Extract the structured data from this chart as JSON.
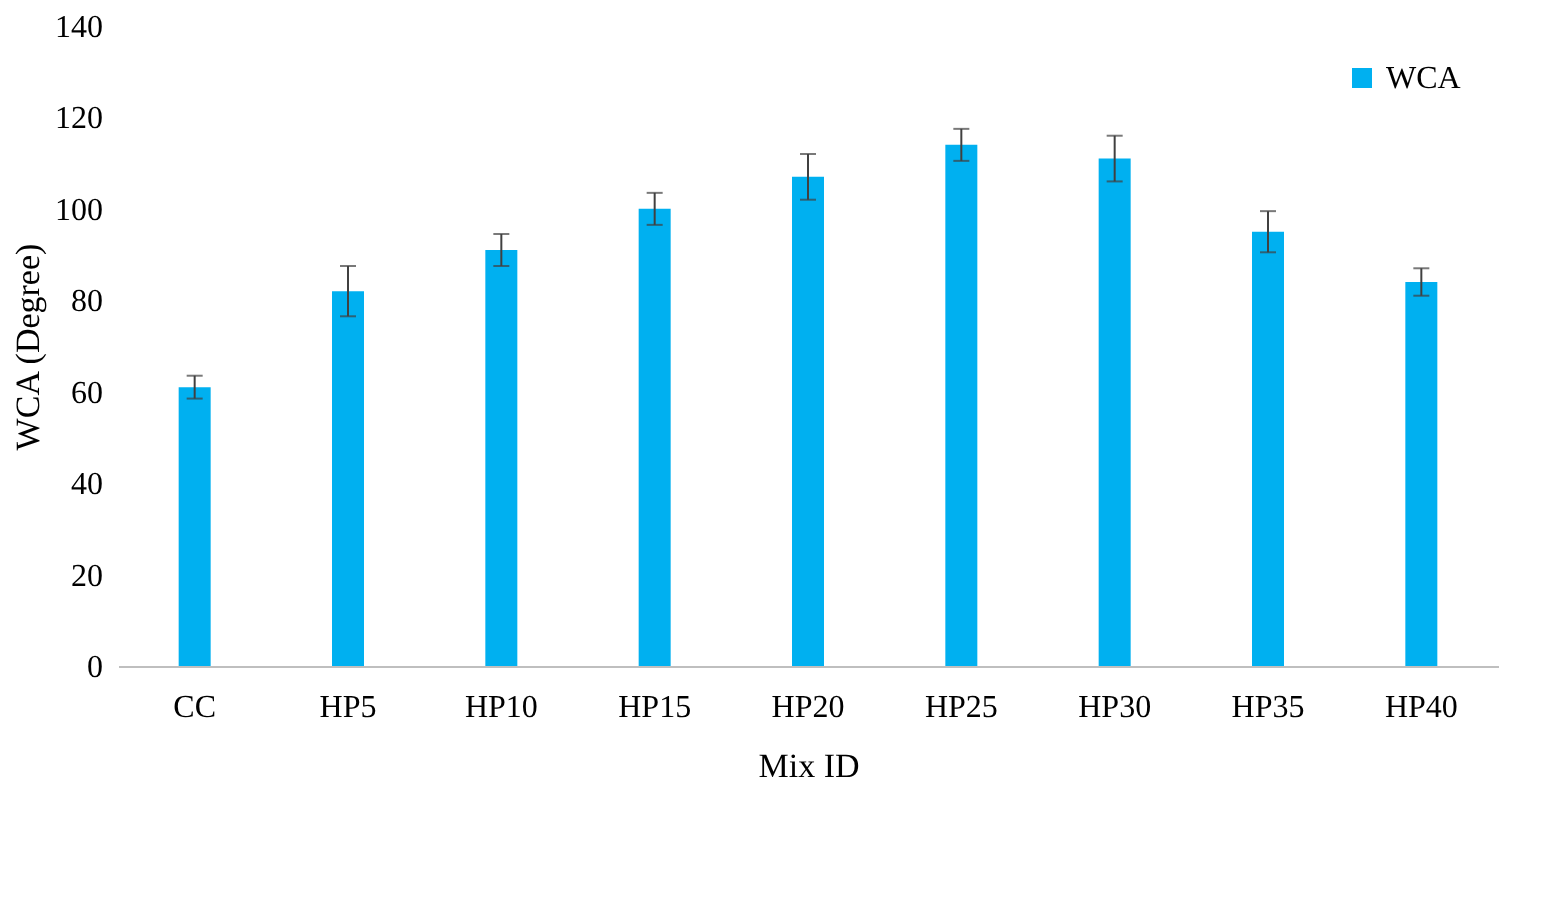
{
  "chart_data": {
    "type": "bar",
    "xlabel": "Mix ID",
    "ylabel": "WCA (Degree)",
    "categories": [
      "CC",
      "HP5",
      "HP10",
      "HP15",
      "HP20",
      "HP25",
      "HP30",
      "HP35",
      "HP40"
    ],
    "series": [
      {
        "name": "WCA",
        "color": "#00b0f0",
        "values": [
          61,
          82,
          91,
          100,
          107,
          114,
          111,
          95,
          84
        ],
        "errors": [
          2.5,
          5.5,
          3.5,
          3.5,
          5,
          3.5,
          5,
          4.5,
          3
        ]
      }
    ],
    "ylim": [
      0,
      140
    ],
    "yticks": [
      0,
      20,
      40,
      60,
      80,
      100,
      120,
      140
    ],
    "grid": false,
    "legend": "top right"
  }
}
